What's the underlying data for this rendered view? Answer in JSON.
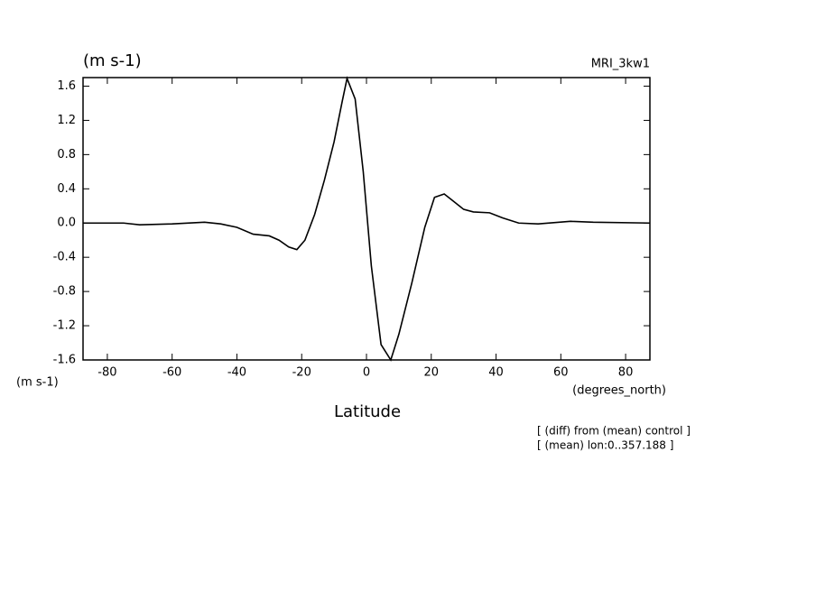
{
  "chart_data": {
    "type": "line",
    "unit_top": "(m s-1)",
    "model": "MRI_3kw1",
    "unit_bottom": "(m s-1)",
    "x_unit": "(degrees_north)",
    "xlabel": "Latitude",
    "notes": [
      "[ (diff) from (mean) control ]",
      "[ (mean) lon:0..357.188 ]"
    ],
    "xlim": [
      -87.5,
      87.5
    ],
    "ylim": [
      -1.6,
      1.7
    ],
    "xticks": [
      -80,
      -60,
      -40,
      -20,
      0,
      20,
      40,
      60,
      80
    ],
    "yticks": [
      -1.6,
      -1.2,
      -0.8,
      -0.4,
      {
        "value": 0,
        "label": "0.0"
      },
      0.4,
      0.8,
      1.2,
      1.6
    ],
    "x": [
      -87.5,
      -75,
      -70,
      -60,
      -50,
      -45,
      -40,
      -35,
      -30,
      -27,
      -24,
      -21.5,
      -19,
      -16,
      -13,
      -10,
      -7.5,
      -6,
      -3.5,
      -1,
      1.5,
      4.5,
      7.5,
      10,
      14,
      18,
      21,
      24,
      27,
      30,
      33,
      38,
      42,
      47,
      53,
      63,
      70,
      87.5
    ],
    "series": [
      {
        "color": "#000000",
        "values": [
          0,
          0,
          -0.02,
          -0.01,
          0.01,
          -0.01,
          -0.05,
          -0.13,
          -0.15,
          -0.2,
          -0.28,
          -0.31,
          -0.2,
          0.1,
          0.5,
          0.95,
          1.42,
          1.69,
          1.45,
          0.6,
          -0.5,
          -1.42,
          -1.6,
          -1.3,
          -0.7,
          -0.05,
          0.3,
          0.34,
          0.25,
          0.16,
          0.13,
          0.12,
          0.06,
          0,
          -0.01,
          0.02,
          0.01,
          0
        ]
      }
    ]
  }
}
